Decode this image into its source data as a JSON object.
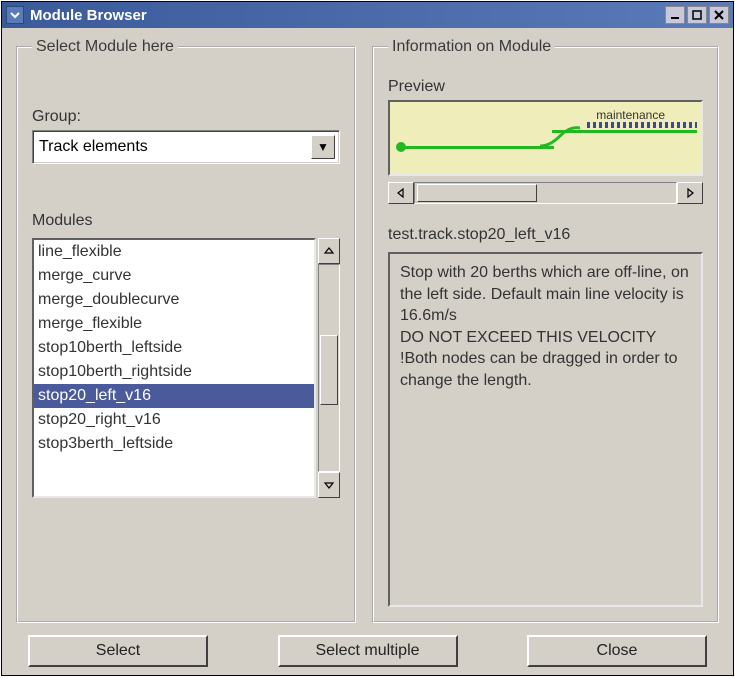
{
  "window": {
    "title": "Module Browser"
  },
  "left": {
    "legend": "Select Module here",
    "group_label": "Group:",
    "group_value": "Track elements",
    "modules_label": "Modules",
    "modules": [
      "line_flexible",
      "merge_curve",
      "merge_doublecurve",
      "merge_flexible",
      "stop10berth_leftside",
      "stop10berth_rightside",
      "stop20_left_v16",
      "stop20_right_v16",
      "stop3berth_leftside"
    ],
    "selected_index": 6
  },
  "right": {
    "legend": "Information on Module",
    "preview_label": "Preview",
    "preview_annotation": "maintenance",
    "module_path": "test.track.stop20_left_v16",
    "description": "Stop with 20 berths which are off-line, on the left side. Default main line velocity is 16.6m/s\n DO NOT EXCEED THIS VELOCITY !Both nodes can be dragged in order to change the length."
  },
  "buttons": {
    "select": "Select",
    "select_multiple": "Select multiple",
    "close": "Close"
  },
  "colors": {
    "titlebar_start": "#3a5a9a",
    "titlebar_end": "#5a7ab8",
    "face": "#d4d0c8",
    "selection": "#4a5a9a",
    "preview_bg": "#efeeba",
    "track_green": "#21b821"
  }
}
